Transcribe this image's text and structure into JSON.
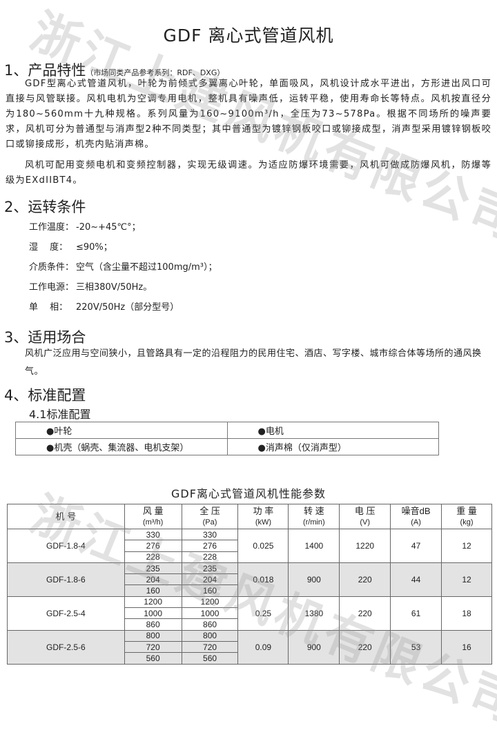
{
  "title": "GDF 离心式管道风机",
  "watermark": "浙江上建风机有限公司",
  "s1": {
    "heading": "1、产品特性",
    "note": "（市场同类产品参考系列：RDF、DXG）",
    "p1": "GDF型离心式管道风机，叶轮为前倾式多翼离心叶轮，单面吸风，风机设计成水平进出，方形进出风口可直接与风管联接。风机电机为空调专用电机，整机具有噪声低，运转平稳，使用寿命长等特点。风机按直径分为180~560mm十九种规格。系列风量为160~9100m³/h，全压为73~578Pa。根据不同场所的噪声要求，风机可分为普通型与消声型2种不同类型；其中普通型为镀锌钢板咬口或铆接成型，消声型采用镀锌钢板咬口或铆接成形，机壳内贴消声棉。",
    "p2": "风机可配用变频电机和变频控制器，实现无级调速。为适应防爆环境需要，风机可做成防爆风机，防爆等级为EXdIIBT4。"
  },
  "s2": {
    "heading": "2、运转条件",
    "items": [
      {
        "k": "工作温度：",
        "v": "-20~+45℃°；"
      },
      {
        "k": "湿　 度：",
        "v": "≤90%；"
      },
      {
        "k": "介质条件：",
        "v": "空气（含尘量不超过100mg/m³）；"
      },
      {
        "k": "工作电源：",
        "v": "三相380V/50Hz。"
      },
      {
        "k": "单　 相：",
        "v": "220V/50Hz（部分型号）"
      }
    ]
  },
  "s3": {
    "heading": "3、适用场合",
    "p": "风机广泛应用与空间狭小，且管路具有一定的沿程阻力的民用住宅、酒店、写字楼、城市综合体等场所的通风换气。"
  },
  "s4": {
    "heading": "4、标准配置",
    "sub": "4.1标准配置",
    "cfg": [
      "●叶轮",
      "●电机",
      "●机壳（蜗壳、集流器、电机支架）",
      "●消声棉（仅消声型）"
    ]
  },
  "perf": {
    "title": "GDF离心式管道风机性能参数",
    "headers": [
      {
        "t": "机 号",
        "u": ""
      },
      {
        "t": "风 量",
        "u": "(m³/h)"
      },
      {
        "t": "全 压",
        "u": "(Pa)"
      },
      {
        "t": "功 率",
        "u": "(kW)"
      },
      {
        "t": "转 速",
        "u": "(r/min)"
      },
      {
        "t": "电 压",
        "u": "(V)"
      },
      {
        "t": "噪音dB",
        "u": "(A)"
      },
      {
        "t": "重 量",
        "u": "(kg)"
      }
    ],
    "rows": [
      {
        "model": "GDF-1.8-4",
        "flow": [
          "330",
          "276",
          "228"
        ],
        "pressure": [
          "330",
          "276",
          "228"
        ],
        "power": "0.025",
        "speed": "1400",
        "voltage": "1220",
        "noise": "47",
        "weight": "12"
      },
      {
        "model": "GDF-1.8-6",
        "flow": [
          "235",
          "204",
          "160"
        ],
        "pressure": [
          "235",
          "204",
          "160"
        ],
        "power": "0.018",
        "speed": "900",
        "voltage": "220",
        "noise": "44",
        "weight": "12"
      },
      {
        "model": "GDF-2.5-4",
        "flow": [
          "1200",
          "1000",
          "860"
        ],
        "pressure": [
          "1200",
          "1000",
          "860"
        ],
        "power": "0.25",
        "speed": "1380",
        "voltage": "220",
        "noise": "61",
        "weight": "18"
      },
      {
        "model": "GDF-2.5-6",
        "flow": [
          "800",
          "720",
          "560"
        ],
        "pressure": [
          "800",
          "720",
          "560"
        ],
        "power": "0.09",
        "speed": "900",
        "voltage": "220",
        "noise": "53",
        "weight": "16"
      }
    ]
  }
}
